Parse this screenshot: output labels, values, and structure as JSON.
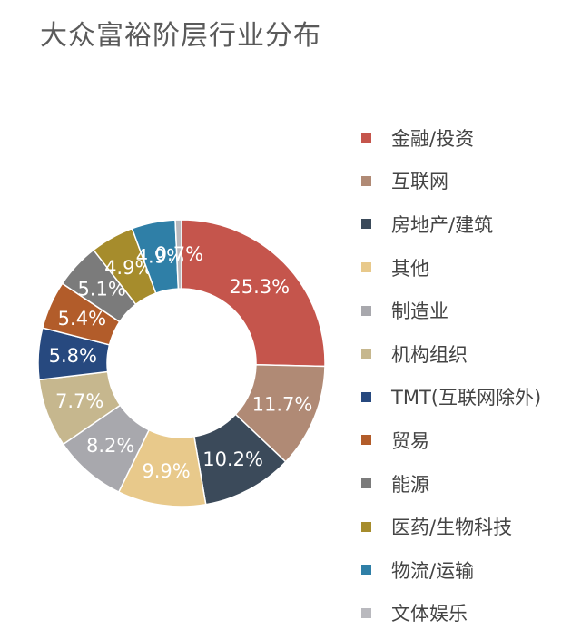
{
  "chart_data": {
    "type": "pie",
    "title": "大众富裕阶层行业分布",
    "legend_position": "right",
    "slices": [
      {
        "name": "金融/投资",
        "value": 25.3,
        "label": "25.3%",
        "color": "#c5554c"
      },
      {
        "name": "互联网",
        "value": 11.7,
        "label": "11.7%",
        "color": "#b08a75"
      },
      {
        "name": "房地产/建筑",
        "value": 10.2,
        "label": "10.2%",
        "color": "#3b4a5a"
      },
      {
        "name": "其他",
        "value": 9.9,
        "label": "9.9%",
        "color": "#e8c98b"
      },
      {
        "name": "制造业",
        "value": 8.2,
        "label": "8.2%",
        "color": "#a8a8ad"
      },
      {
        "name": "机构组织",
        "value": 7.7,
        "label": "7.7%",
        "color": "#c6b78e"
      },
      {
        "name": "TMT(互联网除外)",
        "value": 5.8,
        "label": "5.8%",
        "color": "#27497f"
      },
      {
        "name": "贸易",
        "value": 5.4,
        "label": "5.4%",
        "color": "#b25c2a"
      },
      {
        "name": "能源",
        "value": 5.1,
        "label": "5.1%",
        "color": "#7b7b7b"
      },
      {
        "name": "医药/生物科技",
        "value": 4.9,
        "label": "4.9%",
        "color": "#a68c2c"
      },
      {
        "name": "物流/运输",
        "value": 4.9,
        "label": "4.9%",
        "color": "#2f7fa7"
      },
      {
        "name": "文体娱乐",
        "value": 0.7,
        "label": "0.7%",
        "color": "#b9b9be"
      }
    ]
  }
}
